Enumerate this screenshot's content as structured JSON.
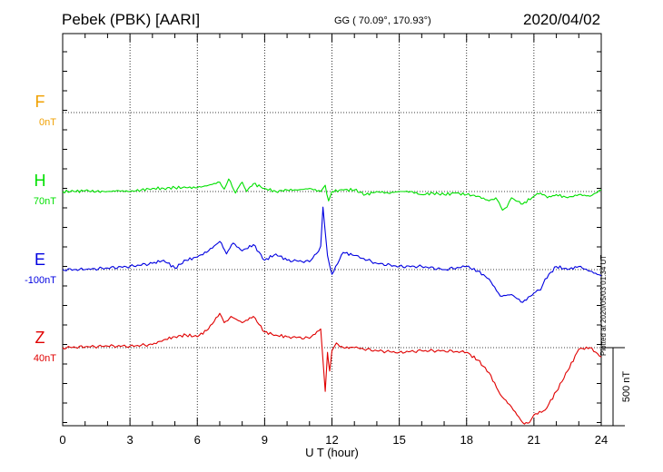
{
  "header": {
    "title": "Pebek (PBK)  [AARI]",
    "coords": "GG ( 70.09°, 170.93°)",
    "date": "2020/04/02"
  },
  "footer": {
    "plotted": "Plotted at 2020/05/03 01:34 UT"
  },
  "chart_data": {
    "type": "line",
    "xlabel": "U T (hour)",
    "xlim": [
      0,
      24
    ],
    "x_ticks": [
      "0",
      "3",
      "6",
      "9",
      "12",
      "15",
      "18",
      "21",
      "24"
    ],
    "grid": true,
    "scale_bar": "500 nT",
    "series": [
      {
        "name": "F",
        "offset": "0nT",
        "color": "#f0a000",
        "values": []
      },
      {
        "name": "H",
        "offset": "70nT",
        "color": "#00e000",
        "x": [
          0,
          0.5,
          1,
          1.5,
          2,
          2.5,
          3,
          3.5,
          4,
          4.5,
          5,
          5.5,
          6,
          6.5,
          7,
          7.2,
          7.4,
          7.7,
          8,
          8.2,
          8.5,
          9,
          9.5,
          10,
          10.5,
          11,
          11.5,
          11.7,
          11.85,
          12,
          12.5,
          13,
          13.5,
          14,
          14.5,
          15,
          15.5,
          16,
          16.5,
          17,
          17.5,
          18,
          18.5,
          19,
          19.3,
          19.6,
          19.8,
          20,
          20.2,
          20.5,
          21,
          21.3,
          21.6,
          22,
          22.5,
          23,
          23.5,
          24
        ],
        "values": [
          0,
          0,
          5,
          0,
          0,
          5,
          0,
          10,
          20,
          20,
          25,
          25,
          25,
          40,
          60,
          15,
          80,
          -10,
          60,
          0,
          50,
          20,
          0,
          10,
          10,
          20,
          0,
          40,
          -60,
          0,
          10,
          10,
          -20,
          0,
          -10,
          0,
          0,
          -20,
          -10,
          -20,
          -10,
          -20,
          -30,
          -60,
          -40,
          -120,
          -100,
          -40,
          -60,
          -80,
          -30,
          -10,
          -40,
          -20,
          -40,
          -20,
          -30,
          10
        ]
      },
      {
        "name": "E",
        "offset": "-100nT",
        "color": "#0000e0",
        "x": [
          0,
          1,
          2,
          3,
          4,
          4.5,
          5,
          5.5,
          6,
          6.5,
          7,
          7.3,
          7.6,
          8,
          8.5,
          9,
          9.5,
          10,
          11,
          11.3,
          11.5,
          11.6,
          11.8,
          12,
          12.5,
          13,
          14,
          15,
          16,
          17,
          18,
          18.5,
          19,
          19.5,
          20,
          20.5,
          21,
          21.3,
          21.5,
          22,
          22.5,
          23,
          23.5,
          24
        ],
        "values": [
          0,
          0,
          10,
          20,
          40,
          60,
          10,
          60,
          80,
          120,
          180,
          100,
          170,
          120,
          160,
          60,
          100,
          60,
          50,
          100,
          150,
          400,
          90,
          -30,
          110,
          90,
          40,
          20,
          20,
          0,
          20,
          -10,
          -60,
          -170,
          -160,
          -210,
          -150,
          -130,
          -60,
          20,
          0,
          20,
          -10,
          -40
        ]
      },
      {
        "name": "Z",
        "offset": "40nT",
        "color": "#e00000",
        "x": [
          0,
          1,
          2,
          3,
          4,
          4.5,
          5,
          5.5,
          6,
          6.5,
          7,
          7.2,
          7.5,
          8,
          8.5,
          9,
          9.5,
          10,
          11,
          11.5,
          11.7,
          11.8,
          11.9,
          12,
          12.2,
          12.5,
          13,
          14,
          15,
          16,
          17,
          18,
          18.5,
          19,
          19.5,
          20,
          20.5,
          20.8,
          21,
          21.5,
          22,
          22.5,
          23,
          23.5,
          24
        ],
        "values": [
          0,
          5,
          10,
          10,
          20,
          50,
          70,
          80,
          70,
          120,
          220,
          160,
          200,
          160,
          200,
          100,
          80,
          70,
          60,
          120,
          -280,
          -30,
          -150,
          -20,
          30,
          0,
          0,
          -20,
          -30,
          -20,
          -20,
          -30,
          -80,
          -160,
          -300,
          -380,
          -480,
          -480,
          -430,
          -400,
          -280,
          -150,
          -10,
          0,
          -60
        ]
      }
    ]
  }
}
